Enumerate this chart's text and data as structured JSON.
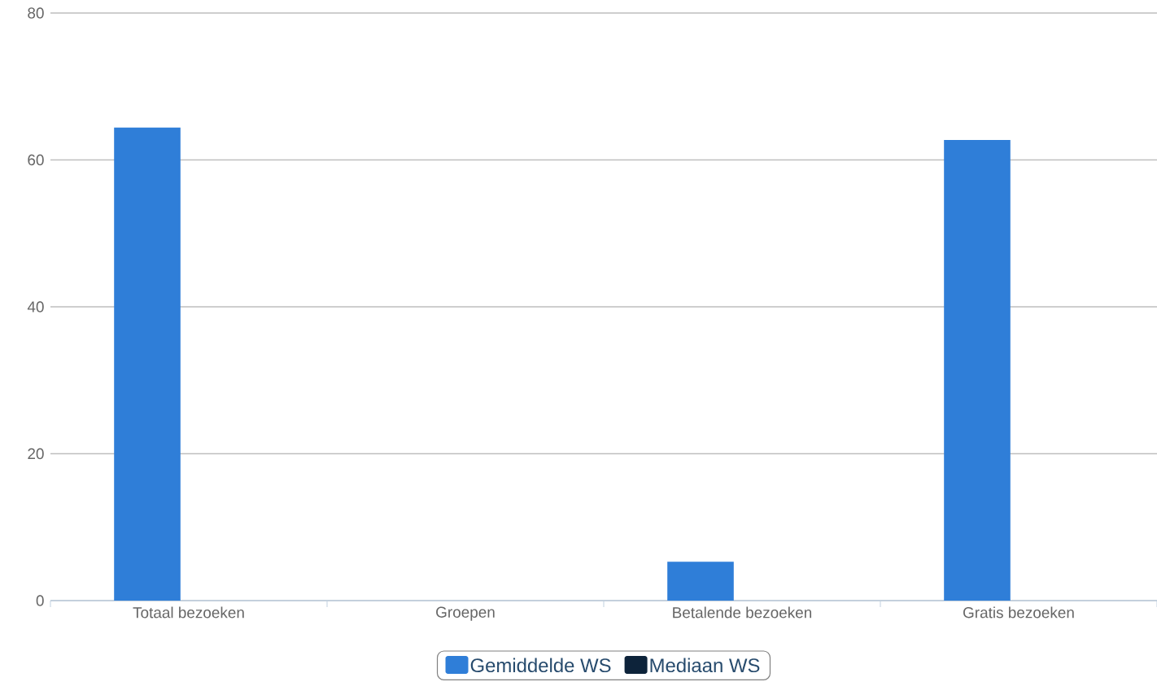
{
  "chart_data": {
    "type": "bar",
    "categories": [
      "Totaal bezoeken",
      "Groepen",
      "Betalende bezoeken",
      "Gratis bezoeken"
    ],
    "series": [
      {
        "name": "Gemiddelde WS",
        "color": "#2f7ed8",
        "values": [
          64.4,
          0,
          5.3,
          62.7
        ]
      },
      {
        "name": "Mediaan WS",
        "color": "#0d233a",
        "values": [
          0,
          0,
          0,
          0
        ]
      }
    ],
    "ylim": [
      0,
      80
    ],
    "yticks": [
      0,
      20,
      40,
      60,
      80
    ],
    "grid": "y",
    "legend": "bottom"
  }
}
